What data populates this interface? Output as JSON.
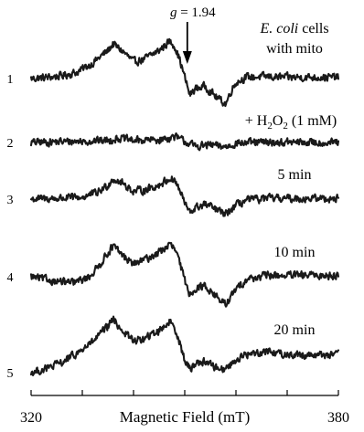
{
  "chart_data": {
    "type": "line",
    "title": "",
    "xlabel": "Magnetic Field (mT)",
    "ylabel": "",
    "xlim": [
      320,
      380
    ],
    "x_ticks": [
      320,
      330,
      340,
      350,
      360,
      370,
      380
    ],
    "x_tick_labels": [
      "320",
      "380"
    ],
    "grid": false,
    "legend": "none",
    "annotations": [
      {
        "name": "g-marker",
        "label": "g = 1.94",
        "x": 350.5
      }
    ],
    "series": [
      {
        "name": "1",
        "label_lines": [
          "E. coli cells",
          "with mito"
        ],
        "x": [
          320,
          323,
          326,
          329,
          332,
          335,
          336,
          338,
          340,
          342,
          345,
          347,
          348,
          349,
          350,
          351,
          352,
          354,
          356,
          358,
          359,
          360,
          362,
          366,
          370
        ],
        "y": [
          0,
          0.08,
          0.22,
          0.5,
          1.2,
          2.2,
          2.7,
          2.1,
          1.3,
          1.5,
          2.2,
          2.9,
          2.6,
          1.5,
          0.1,
          -1.3,
          -0.8,
          -0.6,
          -1.4,
          -2.0,
          -1.0,
          -0.3,
          0.1,
          0.15,
          0.1
        ]
      },
      {
        "name": "2",
        "label_lines": [
          "+ H2O2 (1 mM)"
        ],
        "x": [
          320,
          325,
          330,
          335,
          337,
          340,
          345,
          348,
          350,
          352,
          355,
          358,
          360,
          365,
          370
        ],
        "y": [
          0,
          0.05,
          0.1,
          0.15,
          0.35,
          0.15,
          0.2,
          0.45,
          0.1,
          -0.3,
          -0.2,
          -0.35,
          -0.05,
          0,
          0
        ]
      },
      {
        "name": "3",
        "label_lines": [
          "5 min"
        ],
        "x": [
          320,
          325,
          330,
          333,
          335,
          336,
          338,
          340,
          342,
          345,
          347,
          348,
          349,
          350,
          351,
          352,
          354,
          356,
          358,
          360,
          362,
          366,
          370
        ],
        "y": [
          0,
          0.05,
          0.15,
          0.5,
          1.1,
          1.6,
          1.2,
          0.6,
          0.7,
          1.1,
          1.6,
          1.5,
          0.7,
          -0.3,
          -1.1,
          -0.7,
          -0.4,
          -0.8,
          -1.2,
          -0.5,
          -0.1,
          0.05,
          0.05
        ]
      },
      {
        "name": "4",
        "label_lines": [
          "10 min"
        ],
        "x": [
          320,
          324,
          328,
          331,
          333,
          335,
          336,
          338,
          340,
          342,
          345,
          347,
          348,
          349,
          350,
          351,
          352,
          354,
          356,
          358,
          360,
          362,
          366,
          370
        ],
        "y": [
          0,
          -0.3,
          -0.5,
          -0.1,
          0.7,
          1.9,
          2.4,
          1.6,
          1.0,
          1.3,
          1.9,
          2.5,
          2.2,
          1.1,
          -0.3,
          -1.4,
          -0.9,
          -0.7,
          -1.5,
          -2.2,
          -1.0,
          -0.2,
          0.1,
          0.1
        ]
      },
      {
        "name": "5",
        "label_lines": [
          "20 min"
        ],
        "x": [
          320,
          323,
          326,
          329,
          332,
          335,
          336,
          338,
          340,
          342,
          345,
          347,
          348,
          349,
          350,
          351,
          352,
          354,
          356,
          358,
          360,
          362,
          366,
          370
        ],
        "y": [
          0,
          0.3,
          0.8,
          1.5,
          2.4,
          3.6,
          4.2,
          3.2,
          2.5,
          2.6,
          3.3,
          4.0,
          3.6,
          2.4,
          0.9,
          0.3,
          0.7,
          0.9,
          0.4,
          0.3,
          1.0,
          1.4,
          1.7,
          1.4
        ]
      }
    ]
  }
}
